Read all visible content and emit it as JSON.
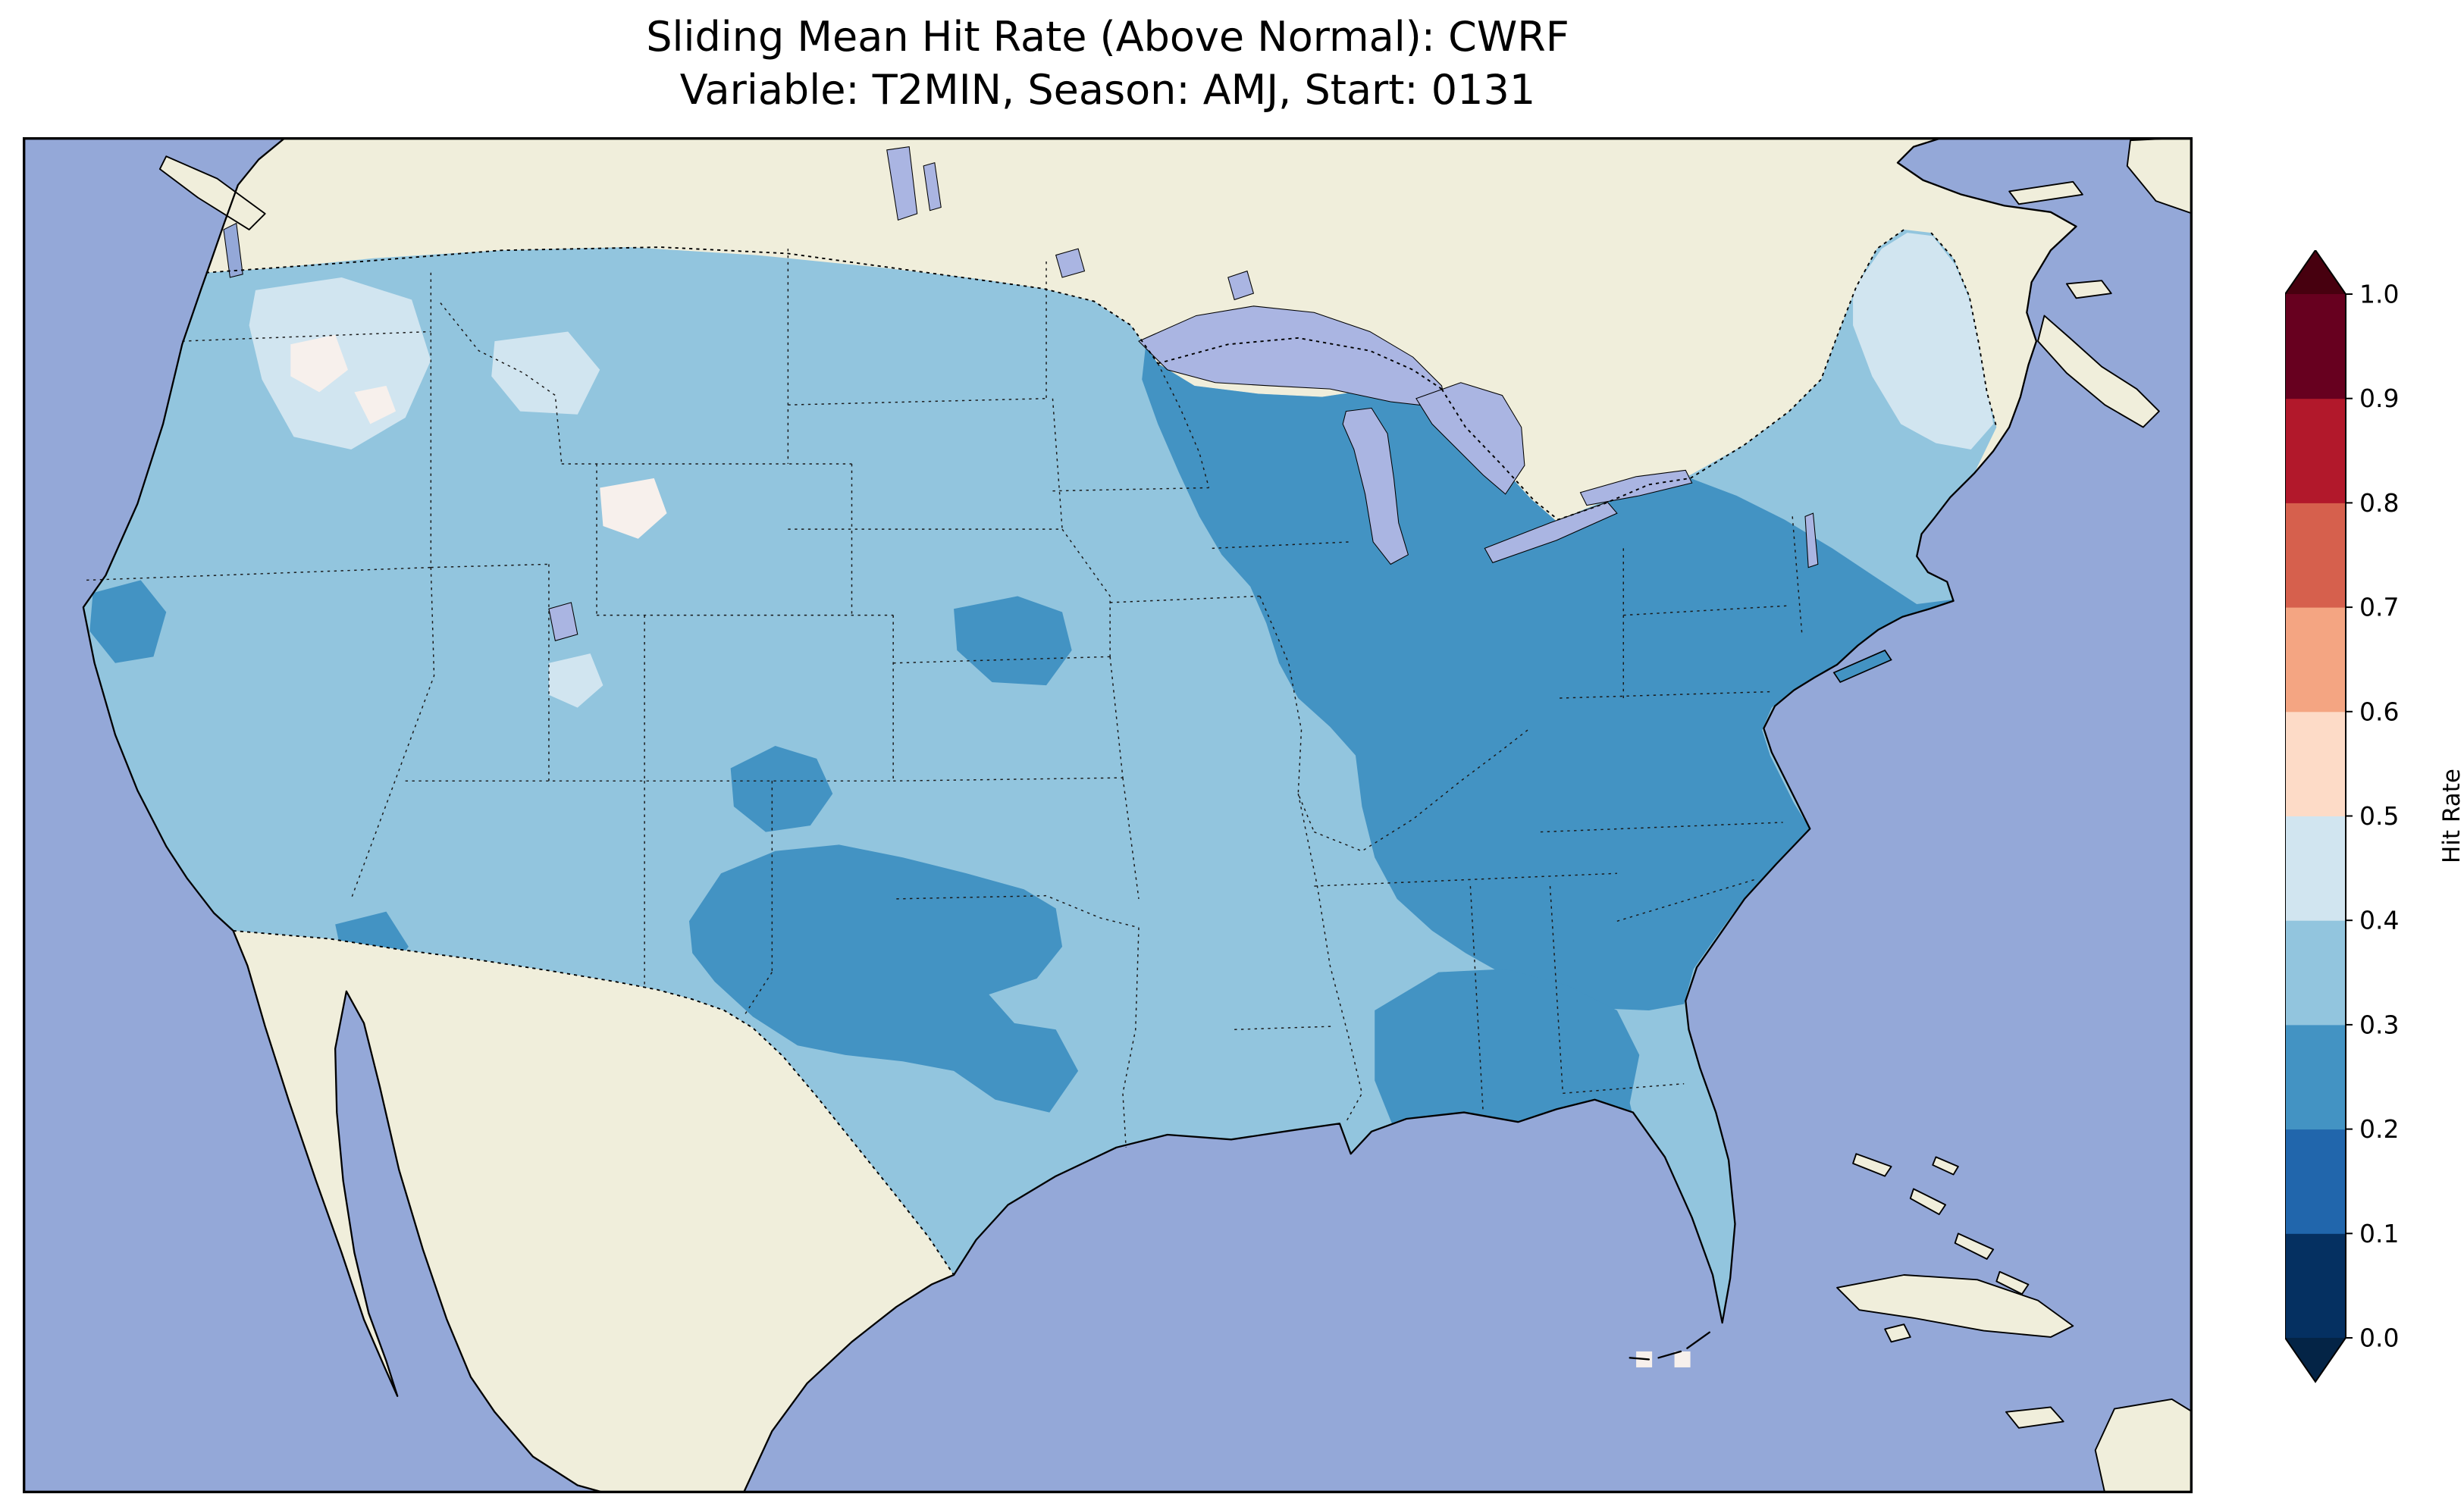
{
  "figure": {
    "title_line1": "Sliding Mean Hit Rate (Above Normal): CWRF",
    "title_line2": "Variable: T2MIN, Season: AMJ, Start: 0131"
  },
  "chart_data": {
    "type": "heatmap",
    "title": "Sliding Mean Hit Rate (Above Normal): CWRF",
    "subtitle": "Variable: T2MIN, Season: AMJ, Start: 0131",
    "model": "CWRF",
    "variable": "T2MIN",
    "season": "AMJ",
    "start": "0131",
    "metric": "Sliding Mean Hit Rate (Above Normal)",
    "region": "Contiguous United States",
    "colorbar": {
      "label": "Hit Rate",
      "ticks": [
        "0.0",
        "0.1",
        "0.2",
        "0.3",
        "0.4",
        "0.5",
        "0.6",
        "0.7",
        "0.8",
        "0.9",
        "1.0"
      ],
      "tick_values": [
        0.0,
        0.1,
        0.2,
        0.3,
        0.4,
        0.5,
        0.6,
        0.7,
        0.8,
        0.9,
        1.0
      ],
      "range": [
        0.0,
        1.0
      ],
      "extend": "both",
      "orientation": "vertical",
      "colors_low_to_high": [
        "#053061",
        "#2166ac",
        "#4393c3",
        "#92c5de",
        "#d1e5f0",
        "#fddbc7",
        "#f4a582",
        "#d6604d",
        "#b2182b",
        "#67001f"
      ],
      "under_color": "#042446",
      "over_color": "#47000f"
    },
    "map_summary": {
      "dominant_bin": "0.3-0.4",
      "regions": [
        {
          "area": "Most of the western and central U.S., Florida, Gulf Coast",
          "hit_rate_bin": "0.3-0.4"
        },
        {
          "area": "Wisconsin, Michigan, Ohio Valley, Appalachians, Mid-Atlantic, Carolinas, interior Southeast",
          "hit_rate_bin": "0.2-0.3"
        },
        {
          "area": "Central Plains (eastern Colorado, Kansas, Oklahoma), Nebraska patch",
          "hit_rate_bin": "0.2-0.3"
        },
        {
          "area": "Northern California coast, southern Arizona patch",
          "hit_rate_bin": "0.2-0.3"
        },
        {
          "area": "Eastern Washington, Idaho, western Montana, Maine",
          "hit_rate_bin": "0.4-0.5"
        },
        {
          "area": "Scattered spots in Idaho, Wyoming, south-central Texas",
          "hit_rate_bin": "0.5-0.6"
        }
      ]
    }
  },
  "colors": {
    "ocean": "#94a8d8",
    "land": "#f0eedb",
    "lake": "#aab5e2",
    "bin_02_03": "#4393c3",
    "bin_03_04": "#92c5de",
    "bin_04_05": "#d1e5f0",
    "bin_05_06": "#f7f0ec",
    "coastline": "#000000"
  }
}
